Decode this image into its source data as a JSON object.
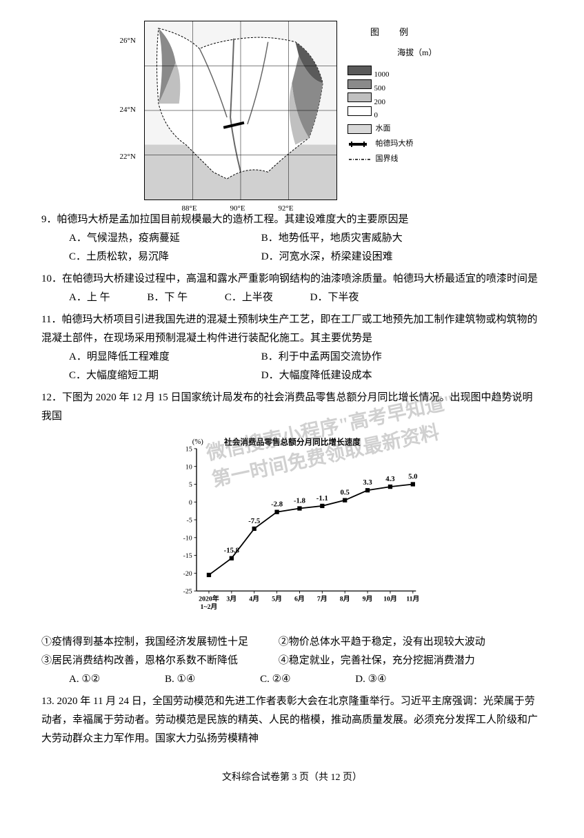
{
  "map": {
    "lat_labels": [
      "26°N",
      "24°N",
      "22°N"
    ],
    "lon_labels": [
      "88°E",
      "90°E",
      "92°E"
    ],
    "legend": {
      "title": "图　例",
      "subtitle": "海拔（m）",
      "elevation_values": [
        "1000",
        "500",
        "200",
        "0"
      ],
      "elevation_colors": [
        "#5a5a5a",
        "#8a8a8a",
        "#c0c0c0",
        "#ffffff"
      ],
      "water_label": "水面",
      "water_color": "#d8d8d8",
      "bridge_label": "帕德玛大桥",
      "border_label": "国界线"
    }
  },
  "q9": {
    "text": "9．帕德玛大桥是孟加拉国目前规模最大的造桥工程。其建设难度大的主要原因是",
    "opts": {
      "a": "A．气候湿热，疫病蔓延",
      "b": "B．地势低平，地质灾害威胁大",
      "c": "C．土质松软，易沉降",
      "d": "D．河宽水深，桥梁建设困难"
    }
  },
  "q10": {
    "text": "10．在帕德玛大桥建设过程中，高温和露水严重影响钢结构的油漆喷涂质量。帕德玛大桥最适宜的喷漆时间是",
    "opts": {
      "a": "A．上 午",
      "b": "B．下 午",
      "c": "C．上半夜",
      "d": "D．下半夜"
    }
  },
  "q11": {
    "text": "11．帕德玛大桥项目引进我国先进的混凝土预制块生产工艺，即在工厂或工地预先加工制作建筑物或构筑物的混凝土部件，在现场采用预制混凝土构件进行装配化施工。其主要优势是",
    "opts": {
      "a": "A．明显降低工程难度",
      "b": "B．利于中孟两国交流协作",
      "c": "C．大幅度缩短工期",
      "d": "D．大幅度降低建设成本"
    }
  },
  "q12": {
    "text": "12．下图为 2020 年 12 月 15 日国家统计局发布的社会消费品零售总额分月同比增长情况。出现图中趋势说明我国",
    "chart": {
      "title": "社会消费品零售总额分月同比增长速度",
      "ylabel": "(%)",
      "yvalues": [
        15,
        10,
        5,
        0,
        -5,
        -10,
        -15,
        -20,
        -25
      ],
      "xlabels": [
        "2020年3月",
        "4月",
        "5月",
        "6月",
        "7月",
        "8月",
        "9月",
        "10月",
        "11月"
      ],
      "xlabel_prefix": "1~2月",
      "data": [
        -20.5,
        -15.8,
        -7.5,
        -2.8,
        -1.8,
        -1.1,
        0.5,
        3.3,
        4.3,
        5.0
      ],
      "point_labels": [
        "",
        "-15.8",
        "-7.5",
        "-2.8",
        "-1.8",
        "-1.1",
        "0.5",
        "3.3",
        "4.3",
        "5.0"
      ],
      "line_color": "#000000",
      "marker_color": "#000000"
    },
    "statements": {
      "s1": "①疫情得到基本控制，我国经济发展韧性十足",
      "s2": "②物价总体水平趋于稳定，没有出现较大波动",
      "s3": "③居民消费结构改善，恩格尔系数不断降低",
      "s4": "④稳定就业，完善社保，充分挖掘消费潜力"
    },
    "opts": {
      "a": "A. ①②",
      "b": "B. ①④",
      "c": "C. ②④",
      "d": "D. ③④"
    }
  },
  "q13": {
    "text": "13. 2020 年 11 月 24 日，全国劳动模范和先进工作者表彰大会在北京隆重举行。习近平主席强调：光荣属于劳动者，幸福属于劳动者。劳动模范是民族的精英、人民的楷模，推动高质量发展。必须充分发挥工人阶级和广大劳动群众主力军作用。国家大力弘扬劳模精神"
  },
  "watermark": {
    "line1": "微信搜索小程序\"高考早知道\"",
    "line2": "第一时间免费领取最新资料"
  },
  "footer": "文科综合试卷第 3 页（共 12 页）"
}
